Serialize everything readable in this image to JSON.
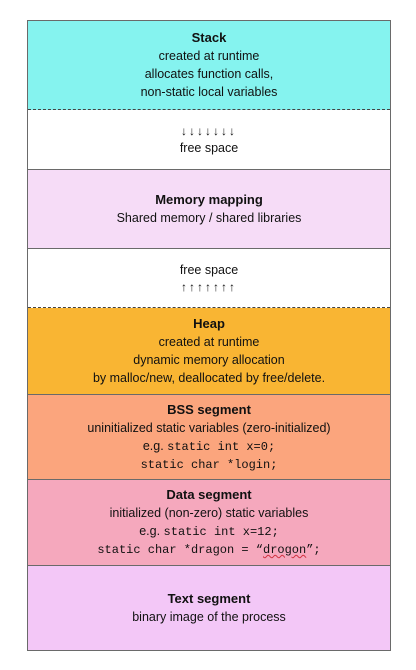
{
  "segments": {
    "stack": {
      "title": "Stack",
      "lines": [
        "created at runtime",
        "allocates function calls,",
        "non-static local variables"
      ],
      "color": "#85f3ef"
    },
    "free_down": {
      "arrows": "↓↓↓↓↓↓↓",
      "label": "free space"
    },
    "mmap": {
      "title": "Memory mapping",
      "lines": [
        "Shared memory / shared libraries"
      ],
      "color": "#f6dcf7"
    },
    "free_up": {
      "label": "free space",
      "arrows": "↑↑↑↑↑↑↑"
    },
    "heap": {
      "title": "Heap",
      "lines": [
        "created at runtime",
        "dynamic memory allocation",
        "by malloc/new, deallocated by free/delete."
      ],
      "color": "#f9b533"
    },
    "bss": {
      "title": "BSS segment",
      "lines": [
        "uninitialized static variables (zero-initialized)"
      ],
      "example_prefix": "e.g. ",
      "code": [
        "static int x=0;",
        "static char *login;"
      ],
      "color": "#fba57d"
    },
    "data": {
      "title": "Data segment",
      "lines": [
        "initialized (non-zero) static variables"
      ],
      "example_prefix": "e.g. ",
      "code": [
        "static int x=12;"
      ],
      "code2_before": "static char *dragon = “",
      "code2_word": "drogon",
      "code2_after": "”;",
      "color": "#f5a8bd"
    },
    "text": {
      "title": "Text segment",
      "lines": [
        "binary image of the process"
      ],
      "color": "#f3c7f7"
    }
  }
}
